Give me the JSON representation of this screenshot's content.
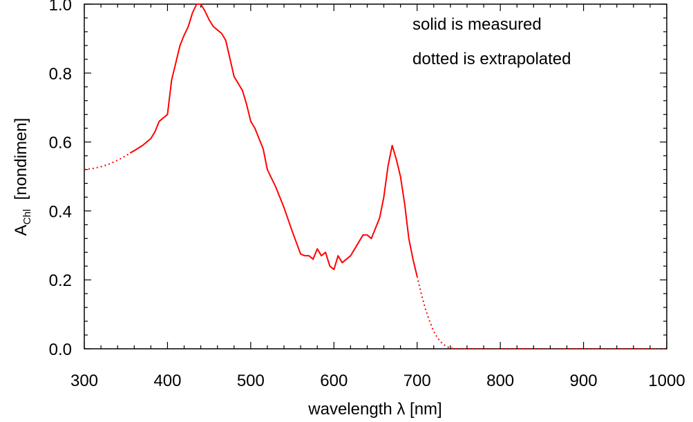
{
  "chart_data": {
    "type": "line",
    "xlabel": "wavelength λ  [nm]",
    "ylabel": {
      "prefix": "A",
      "subscript": "Chl",
      "suffix": "  [nondimen]"
    },
    "xlim": [
      300,
      1000
    ],
    "ylim": [
      0,
      1.0
    ],
    "x_ticks": [
      "300",
      "400",
      "500",
      "600",
      "700",
      "800",
      "900",
      "1000"
    ],
    "y_ticks": [
      "0.0",
      "0.2",
      "0.4",
      "0.6",
      "0.8",
      "1.0"
    ],
    "annotations": [
      "solid is measured",
      "dotted is extrapolated"
    ],
    "grid": false,
    "line_color": "#ff0000",
    "series": [
      {
        "style": "dotted",
        "x": [
          300,
          310,
          320,
          330,
          340,
          350,
          355
        ],
        "y": [
          0.52,
          0.523,
          0.528,
          0.536,
          0.547,
          0.56,
          0.568
        ]
      },
      {
        "style": "solid",
        "x": [
          355,
          360,
          370,
          380,
          385,
          390,
          395,
          400,
          405,
          410,
          415,
          420,
          425,
          430,
          435,
          440,
          445,
          450,
          455,
          460,
          465,
          470,
          480,
          490,
          495,
          500,
          505,
          510,
          515,
          520,
          530,
          540,
          550,
          560,
          565,
          570,
          575,
          580,
          585,
          590,
          595,
          600,
          605,
          610,
          620,
          630,
          635,
          640,
          645,
          650,
          655,
          660,
          665,
          670,
          675,
          680,
          685,
          690,
          695,
          700
        ],
        "y": [
          0.568,
          0.575,
          0.59,
          0.61,
          0.63,
          0.66,
          0.67,
          0.68,
          0.78,
          0.83,
          0.88,
          0.91,
          0.935,
          0.975,
          1.0,
          1.0,
          0.98,
          0.955,
          0.935,
          0.925,
          0.915,
          0.895,
          0.79,
          0.75,
          0.71,
          0.66,
          0.64,
          0.61,
          0.58,
          0.52,
          0.47,
          0.41,
          0.34,
          0.275,
          0.27,
          0.27,
          0.26,
          0.29,
          0.27,
          0.28,
          0.24,
          0.23,
          0.27,
          0.25,
          0.27,
          0.31,
          0.33,
          0.33,
          0.32,
          0.35,
          0.38,
          0.44,
          0.53,
          0.59,
          0.55,
          0.5,
          0.42,
          0.32,
          0.26,
          0.21
        ]
      },
      {
        "style": "dotted",
        "x": [
          700,
          705,
          710,
          715,
          720,
          725,
          730,
          735,
          740,
          745,
          750,
          800,
          900,
          1000
        ],
        "y": [
          0.21,
          0.16,
          0.115,
          0.08,
          0.05,
          0.03,
          0.016,
          0.007,
          0.002,
          0.0,
          0.0,
          0.0,
          0.0,
          0.0
        ]
      }
    ]
  }
}
